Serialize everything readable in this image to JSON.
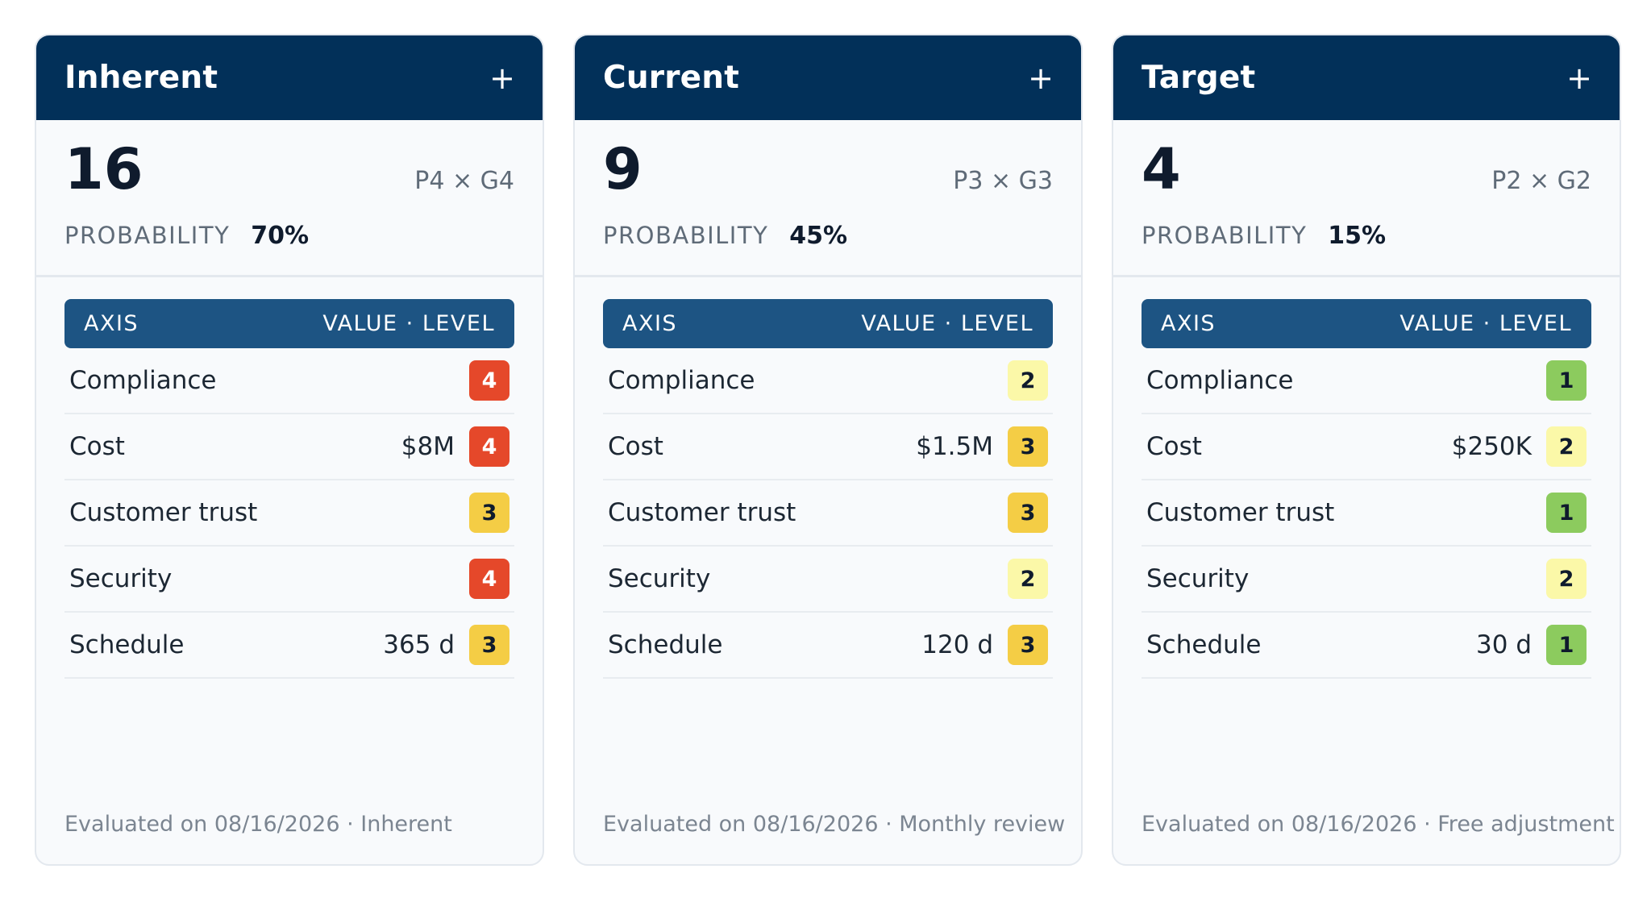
{
  "colors": {
    "header_bg": "#023059",
    "table_head_bg": "#1d5483",
    "level_1": {
      "bg": "#8ccb5e",
      "fg": "#0f1b2d"
    },
    "level_2": {
      "bg": "#fbf8a8",
      "fg": "#0f1b2d"
    },
    "level_3": {
      "bg": "#f4cd45",
      "fg": "#0f1b2d"
    },
    "level_4": {
      "bg": "#e5482a",
      "fg": "#ffffff"
    }
  },
  "table_head": {
    "axis_label": "AXIS",
    "value_level_label": "VALUE · LEVEL"
  },
  "probability_label": "PROBABILITY",
  "add_icon": "+",
  "cards": [
    {
      "title": "Inherent",
      "score": "16",
      "formula": "P4 × G4",
      "probability": "70%",
      "rows": [
        {
          "axis": "Compliance",
          "value": "",
          "level": "4"
        },
        {
          "axis": "Cost",
          "value": "$8M",
          "level": "4"
        },
        {
          "axis": "Customer trust",
          "value": "",
          "level": "3"
        },
        {
          "axis": "Security",
          "value": "",
          "level": "4"
        },
        {
          "axis": "Schedule",
          "value": "365 d",
          "level": "3"
        }
      ],
      "footer": "Evaluated on 08/16/2026 · Inherent"
    },
    {
      "title": "Current",
      "score": "9",
      "formula": "P3 × G3",
      "probability": "45%",
      "rows": [
        {
          "axis": "Compliance",
          "value": "",
          "level": "2"
        },
        {
          "axis": "Cost",
          "value": "$1.5M",
          "level": "3"
        },
        {
          "axis": "Customer trust",
          "value": "",
          "level": "3"
        },
        {
          "axis": "Security",
          "value": "",
          "level": "2"
        },
        {
          "axis": "Schedule",
          "value": "120 d",
          "level": "3"
        }
      ],
      "footer": "Evaluated on 08/16/2026 · Monthly review"
    },
    {
      "title": "Target",
      "score": "4",
      "formula": "P2 × G2",
      "probability": "15%",
      "rows": [
        {
          "axis": "Compliance",
          "value": "",
          "level": "1"
        },
        {
          "axis": "Cost",
          "value": "$250K",
          "level": "2"
        },
        {
          "axis": "Customer trust",
          "value": "",
          "level": "1"
        },
        {
          "axis": "Security",
          "value": "",
          "level": "2"
        },
        {
          "axis": "Schedule",
          "value": "30 d",
          "level": "1"
        }
      ],
      "footer": "Evaluated on 08/16/2026 · Free adjustment"
    }
  ]
}
